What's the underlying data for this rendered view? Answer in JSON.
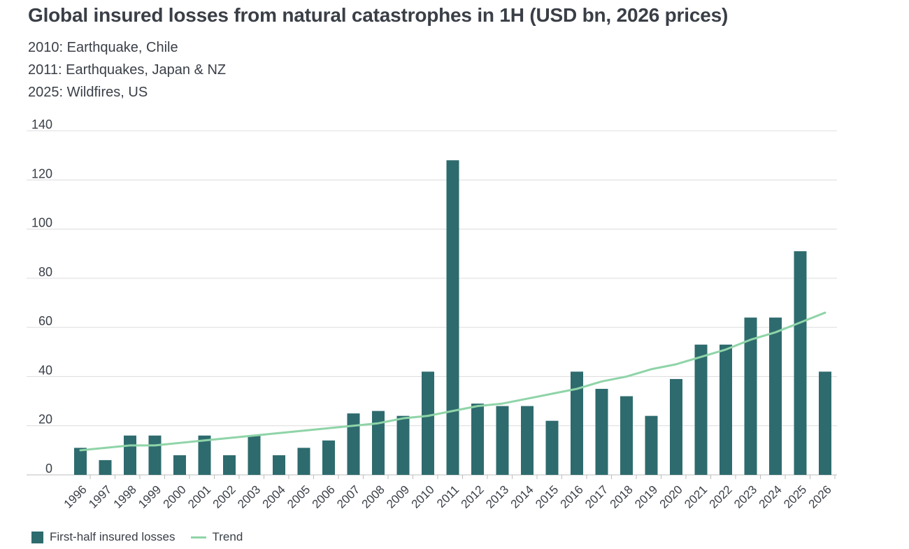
{
  "header": {
    "title": "Global insured losses from natural catastrophes in 1H (USD bn, 2026 prices)",
    "notes": [
      "2010: Earthquake, Chile",
      "2011: Earthquakes, Japan & NZ",
      "2025: Wildfires, US"
    ]
  },
  "colors": {
    "bar": "#2e6b6e",
    "trend": "#8fd4a8",
    "grid": "#dcdcdc",
    "text": "#3a3f47"
  },
  "legend": {
    "bars_label": "First-half insured losses",
    "trend_label": "Trend"
  },
  "chart_data": {
    "type": "bar",
    "title": "Global insured losses from natural catastrophes in 1H (USD bn, 2026 prices)",
    "xlabel": "",
    "ylabel": "",
    "ylim": [
      0,
      140
    ],
    "yticks": [
      0,
      20,
      40,
      60,
      80,
      100,
      120,
      140
    ],
    "grid": true,
    "legend_position": "bottom-left",
    "categories": [
      "1996",
      "1997",
      "1998",
      "1999",
      "2000",
      "2001",
      "2002",
      "2003",
      "2004",
      "2005",
      "2006",
      "2007",
      "2008",
      "2009",
      "2010",
      "2011",
      "2012",
      "2013",
      "2014",
      "2015",
      "2016",
      "2017",
      "2018",
      "2019",
      "2020",
      "2021",
      "2022",
      "2023",
      "2024",
      "2025",
      "2026"
    ],
    "series": [
      {
        "name": "First-half insured losses",
        "type": "bar",
        "values": [
          11,
          6,
          16,
          16,
          8,
          16,
          8,
          16,
          8,
          11,
          14,
          25,
          26,
          24,
          42,
          128,
          29,
          28,
          28,
          22,
          42,
          35,
          32,
          24,
          39,
          53,
          53,
          64,
          64,
          91,
          42
        ]
      },
      {
        "name": "Trend",
        "type": "line",
        "values": [
          10,
          11,
          12,
          12,
          13,
          14,
          15,
          16,
          17,
          18,
          19,
          20,
          21,
          23,
          24,
          26,
          28,
          29,
          31,
          33,
          35,
          38,
          40,
          43,
          45,
          48,
          51,
          55,
          58,
          62,
          66
        ]
      }
    ]
  }
}
